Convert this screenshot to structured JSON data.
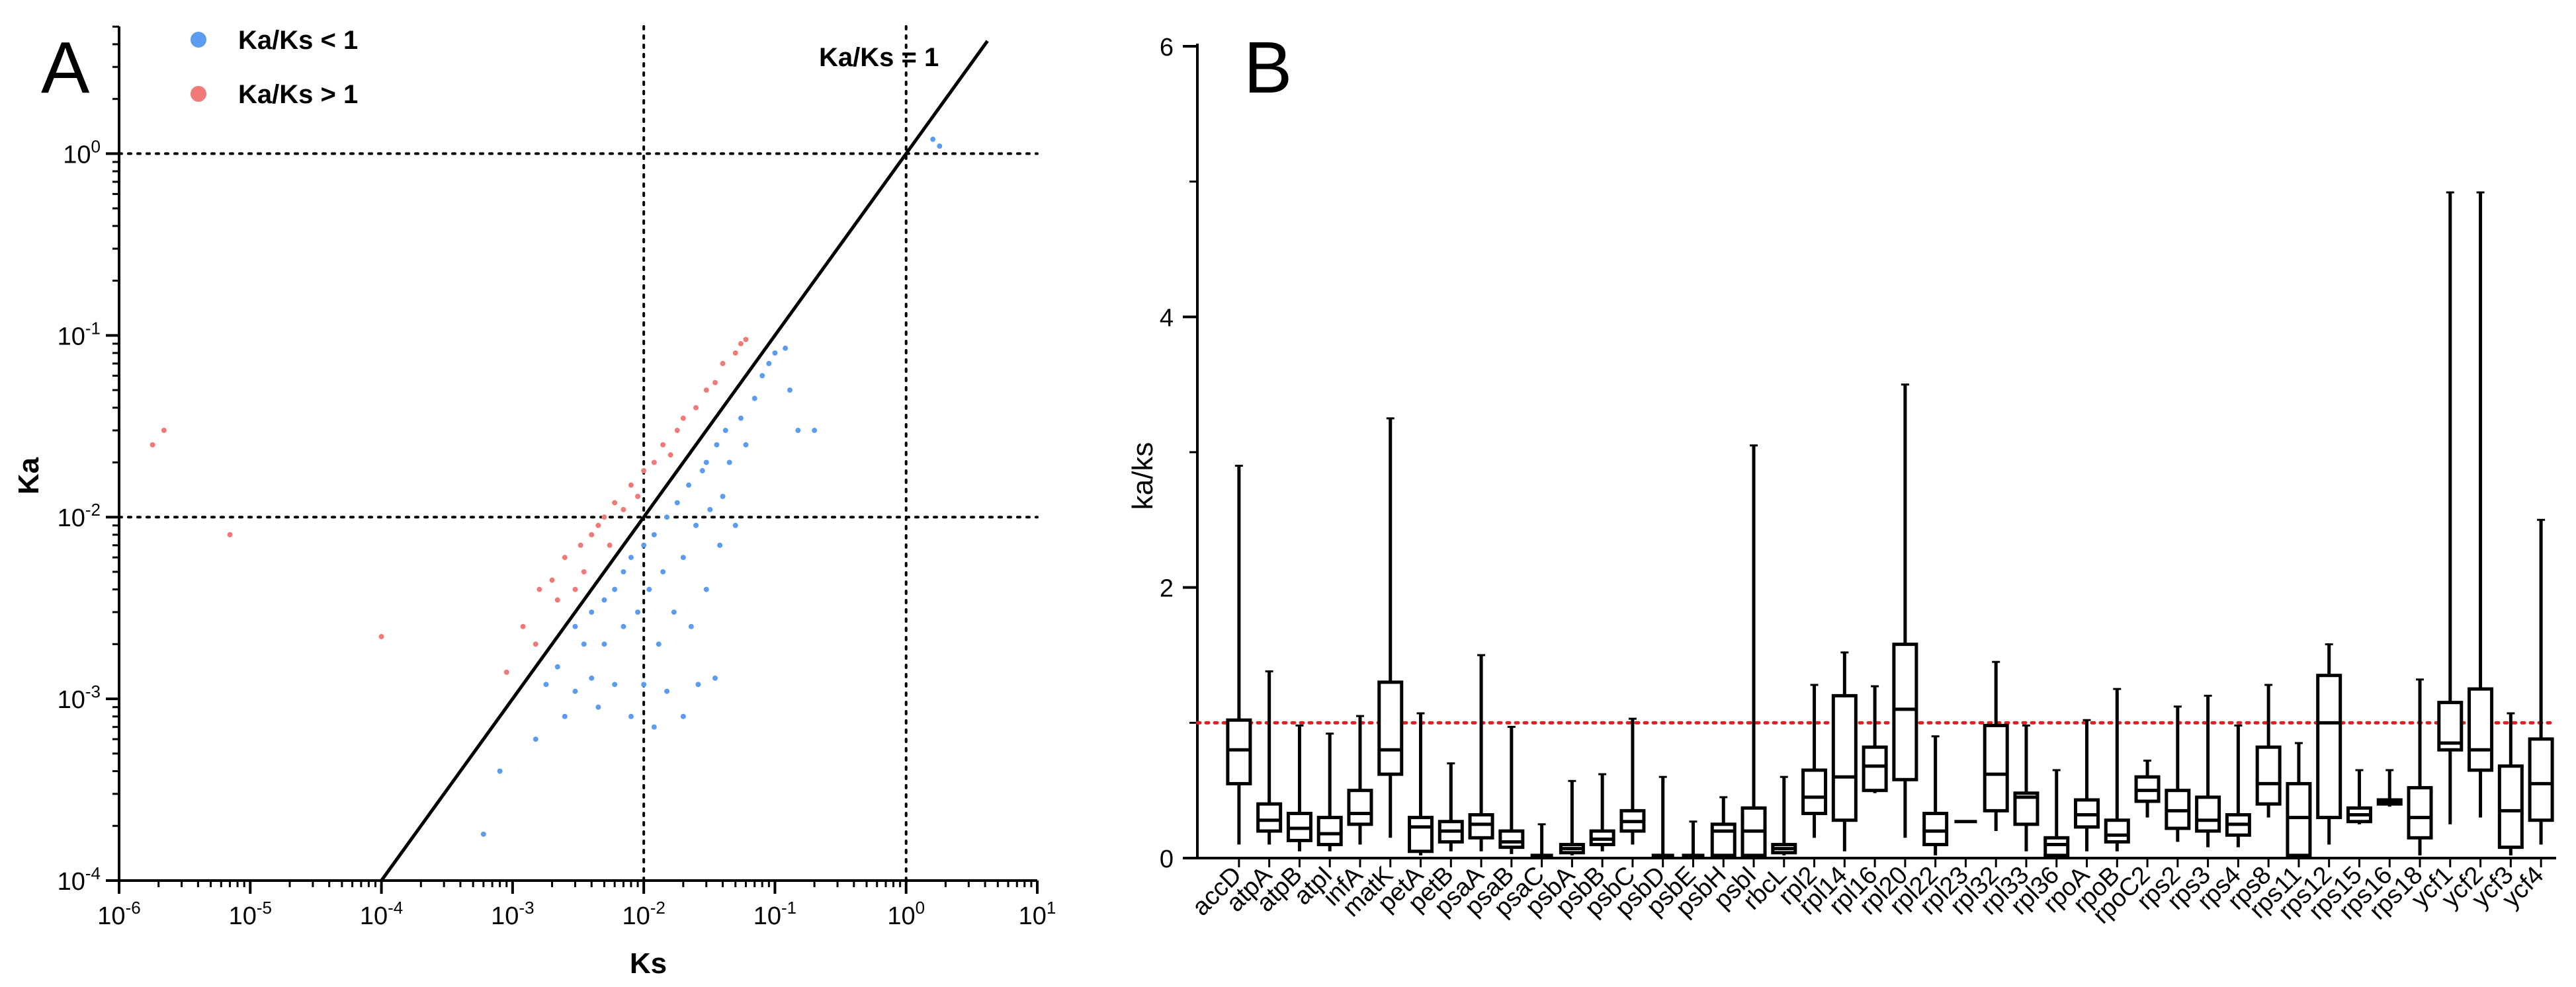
{
  "chart_data": [
    {
      "panel": "A",
      "type": "scatter",
      "xlabel": "Ks",
      "ylabel": "Ka",
      "xscale": "log",
      "yscale": "log",
      "xlim_exp": [
        -6,
        1
      ],
      "ylim_exp": [
        -4,
        0.7
      ],
      "x_ticks": [
        {
          "base": "10",
          "exp": "-6"
        },
        {
          "base": "10",
          "exp": "-5"
        },
        {
          "base": "10",
          "exp": "-4"
        },
        {
          "base": "10",
          "exp": "-3"
        },
        {
          "base": "10",
          "exp": "-2"
        },
        {
          "base": "10",
          "exp": "-1"
        },
        {
          "base": "10",
          "exp": "0"
        },
        {
          "base": "10",
          "exp": "1"
        }
      ],
      "y_ticks": [
        {
          "base": "10",
          "exp": "-4"
        },
        {
          "base": "10",
          "exp": "-3"
        },
        {
          "base": "10",
          "exp": "-2"
        },
        {
          "base": "10",
          "exp": "-1"
        },
        {
          "base": "10",
          "exp": "0"
        }
      ],
      "reference_lines": {
        "x": [
          0.01,
          1
        ],
        "y": [
          0.01,
          1
        ],
        "style": "dotted"
      },
      "diagonal": {
        "label": "Ka/Ks = 1",
        "slope": 1
      },
      "legend": [
        {
          "label": "Ka/Ks < 1",
          "color": "#5b9cf0"
        },
        {
          "label": "Ka/Ks > 1",
          "color": "#f07a78"
        }
      ],
      "series": [
        {
          "name": "Ka/Ks < 1",
          "color": "#5b9cf0",
          "points": [
            [
              0.0006,
              0.00018
            ],
            [
              0.0008,
              0.0004
            ],
            [
              0.0015,
              0.0006
            ],
            [
              0.0018,
              0.0012
            ],
            [
              0.0022,
              0.0015
            ],
            [
              0.0025,
              0.0008
            ],
            [
              0.003,
              0.0011
            ],
            [
              0.003,
              0.0025
            ],
            [
              0.0035,
              0.002
            ],
            [
              0.004,
              0.0013
            ],
            [
              0.004,
              0.003
            ],
            [
              0.0045,
              0.0009
            ],
            [
              0.005,
              0.0035
            ],
            [
              0.005,
              0.002
            ],
            [
              0.006,
              0.004
            ],
            [
              0.006,
              0.0012
            ],
            [
              0.007,
              0.0025
            ],
            [
              0.007,
              0.005
            ],
            [
              0.008,
              0.006
            ],
            [
              0.008,
              0.0008
            ],
            [
              0.009,
              0.003
            ],
            [
              0.01,
              0.007
            ],
            [
              0.01,
              0.0012
            ],
            [
              0.011,
              0.004
            ],
            [
              0.012,
              0.008
            ],
            [
              0.012,
              0.0007
            ],
            [
              0.013,
              0.002
            ],
            [
              0.014,
              0.005
            ],
            [
              0.015,
              0.01
            ],
            [
              0.015,
              0.0011
            ],
            [
              0.017,
              0.003
            ],
            [
              0.018,
              0.012
            ],
            [
              0.02,
              0.006
            ],
            [
              0.02,
              0.0008
            ],
            [
              0.022,
              0.015
            ],
            [
              0.023,
              0.0025
            ],
            [
              0.025,
              0.009
            ],
            [
              0.026,
              0.0012
            ],
            [
              0.028,
              0.018
            ],
            [
              0.03,
              0.004
            ],
            [
              0.03,
              0.02
            ],
            [
              0.032,
              0.011
            ],
            [
              0.035,
              0.0013
            ],
            [
              0.036,
              0.025
            ],
            [
              0.038,
              0.007
            ],
            [
              0.04,
              0.013
            ],
            [
              0.042,
              0.03
            ],
            [
              0.045,
              0.02
            ],
            [
              0.05,
              0.009
            ],
            [
              0.055,
              0.035
            ],
            [
              0.06,
              0.025
            ],
            [
              0.07,
              0.045
            ],
            [
              0.08,
              0.06
            ],
            [
              0.09,
              0.07
            ],
            [
              0.1,
              0.08
            ],
            [
              0.12,
              0.085
            ],
            [
              0.13,
              0.05
            ],
            [
              0.15,
              0.03
            ],
            [
              0.2,
              0.03
            ],
            [
              1.6,
              1.2
            ],
            [
              1.8,
              1.1
            ]
          ]
        },
        {
          "name": "Ka/Ks > 1",
          "color": "#f07a78",
          "points": [
            [
              2.2e-06,
              0.03
            ],
            [
              1.8e-06,
              0.025
            ],
            [
              7e-06,
              0.008
            ],
            [
              0.0001,
              0.0022
            ],
            [
              0.0009,
              0.0014
            ],
            [
              0.0012,
              0.0025
            ],
            [
              0.0015,
              0.002
            ],
            [
              0.0016,
              0.004
            ],
            [
              0.002,
              0.0045
            ],
            [
              0.0022,
              0.0035
            ],
            [
              0.0025,
              0.006
            ],
            [
              0.003,
              0.004
            ],
            [
              0.0033,
              0.007
            ],
            [
              0.0035,
              0.005
            ],
            [
              0.004,
              0.008
            ],
            [
              0.0045,
              0.009
            ],
            [
              0.005,
              0.01
            ],
            [
              0.0055,
              0.007
            ],
            [
              0.006,
              0.012
            ],
            [
              0.007,
              0.011
            ],
            [
              0.008,
              0.015
            ],
            [
              0.009,
              0.013
            ],
            [
              0.01,
              0.018
            ],
            [
              0.012,
              0.02
            ],
            [
              0.014,
              0.025
            ],
            [
              0.016,
              0.022
            ],
            [
              0.018,
              0.03
            ],
            [
              0.02,
              0.035
            ],
            [
              0.025,
              0.04
            ],
            [
              0.03,
              0.05
            ],
            [
              0.035,
              0.055
            ],
            [
              0.04,
              0.07
            ],
            [
              0.05,
              0.08
            ],
            [
              0.055,
              0.09
            ],
            [
              0.06,
              0.095
            ]
          ]
        }
      ]
    },
    {
      "panel": "B",
      "type": "boxplot",
      "ylabel": "ka/ks",
      "ylim": [
        0,
        6
      ],
      "y_ticks": [
        "0",
        "2",
        "4",
        "6"
      ],
      "reference_line": {
        "y": 1,
        "color": "#e32020",
        "style": "dotted"
      },
      "categories": [
        "accD",
        "atpA",
        "atpB",
        "atpI",
        "infA",
        "matK",
        "petA",
        "petB",
        "psaA",
        "psaB",
        "psaC",
        "psbA",
        "psbB",
        "psbC",
        "psbD",
        "psbE",
        "psbH",
        "psbI",
        "rbcL",
        "rpl2",
        "rpl14",
        "rpl16",
        "rpl20",
        "rpl22",
        "rpl23",
        "rpl32",
        "rpl33",
        "rpl36",
        "rpoA",
        "rpoB",
        "rpoC2",
        "rps2",
        "rps3",
        "rps4",
        "rps8",
        "rps11",
        "rps12",
        "rps15",
        "rps16",
        "rps18",
        "ycf1",
        "ycf2",
        "ycf3",
        "ycf4"
      ],
      "boxes": [
        [
          0.1,
          0.55,
          0.8,
          1.02,
          2.9
        ],
        [
          0.1,
          0.2,
          0.28,
          0.4,
          1.38
        ],
        [
          0.05,
          0.13,
          0.22,
          0.33,
          0.98
        ],
        [
          0.05,
          0.1,
          0.18,
          0.3,
          0.92
        ],
        [
          0.1,
          0.25,
          0.33,
          0.5,
          1.05
        ],
        [
          0.15,
          0.62,
          0.8,
          1.3,
          3.25
        ],
        [
          0.02,
          0.05,
          0.23,
          0.3,
          1.07
        ],
        [
          0.05,
          0.12,
          0.2,
          0.27,
          0.7
        ],
        [
          0.05,
          0.15,
          0.25,
          0.32,
          1.5
        ],
        [
          0.03,
          0.08,
          0.12,
          0.2,
          0.97
        ],
        [
          0.02,
          0.02,
          0.02,
          0.02,
          0.25
        ],
        [
          0.02,
          0.04,
          0.07,
          0.1,
          0.57
        ],
        [
          0.05,
          0.1,
          0.14,
          0.2,
          0.62
        ],
        [
          0.1,
          0.2,
          0.27,
          0.35,
          1.03
        ],
        [
          0.02,
          0.02,
          0.02,
          0.02,
          0.6
        ],
        [
          0.02,
          0.02,
          0.02,
          0.02,
          0.27
        ],
        [
          0.02,
          0.02,
          0.2,
          0.25,
          0.45
        ],
        [
          0.02,
          0.02,
          0.2,
          0.37,
          3.05
        ],
        [
          0.02,
          0.04,
          0.07,
          0.1,
          0.6
        ],
        [
          0.15,
          0.33,
          0.45,
          0.65,
          1.28
        ],
        [
          0.05,
          0.28,
          0.6,
          1.2,
          1.52
        ],
        [
          0.48,
          0.5,
          0.68,
          0.82,
          1.27
        ],
        [
          0.15,
          0.58,
          1.1,
          1.58,
          3.5
        ],
        [
          0.02,
          0.1,
          0.2,
          0.33,
          0.9
        ],
        [
          0.27,
          0.27,
          0.27,
          0.27,
          0.27
        ],
        [
          0.2,
          0.35,
          0.62,
          0.98,
          1.45
        ],
        [
          0.05,
          0.25,
          0.45,
          0.48,
          0.98
        ],
        [
          0.02,
          0.02,
          0.1,
          0.15,
          0.65
        ],
        [
          0.05,
          0.23,
          0.32,
          0.43,
          1.02
        ],
        [
          0.05,
          0.12,
          0.17,
          0.28,
          1.25
        ],
        [
          0.3,
          0.42,
          0.5,
          0.6,
          0.72
        ],
        [
          0.12,
          0.22,
          0.35,
          0.5,
          1.12
        ],
        [
          0.08,
          0.2,
          0.28,
          0.45,
          1.2
        ],
        [
          0.08,
          0.17,
          0.25,
          0.32,
          0.98
        ],
        [
          0.3,
          0.4,
          0.55,
          0.82,
          1.28
        ],
        [
          0.02,
          0.02,
          0.3,
          0.55,
          0.85
        ],
        [
          0.1,
          0.3,
          1.0,
          1.35,
          1.58
        ],
        [
          0.25,
          0.27,
          0.32,
          0.37,
          0.65
        ],
        [
          0.38,
          0.4,
          0.42,
          0.43,
          0.65
        ],
        [
          0.02,
          0.15,
          0.3,
          0.52,
          1.32
        ],
        [
          0.25,
          0.8,
          0.85,
          1.15,
          4.92
        ],
        [
          0.3,
          0.65,
          0.8,
          1.25,
          4.92
        ],
        [
          0.02,
          0.08,
          0.35,
          0.68,
          1.07
        ],
        [
          0.1,
          0.28,
          0.55,
          0.88,
          2.5
        ]
      ]
    }
  ],
  "panels": {
    "a_letter": "A",
    "b_letter": "B"
  }
}
